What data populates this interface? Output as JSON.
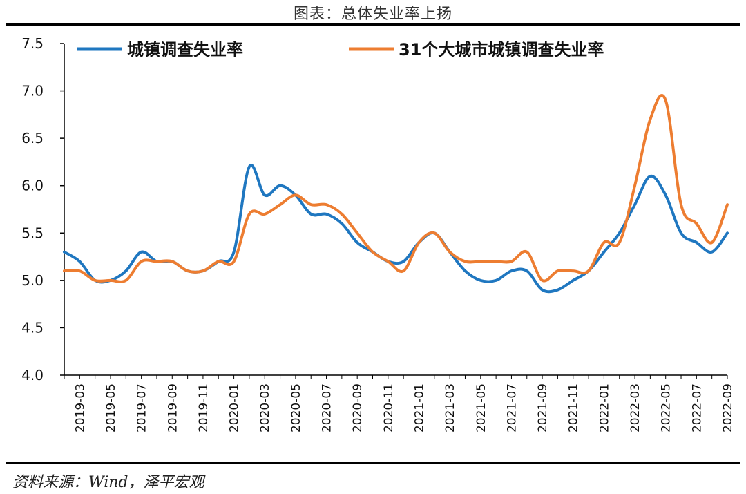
{
  "title": "图表：总体失业率上扬",
  "source": "资料来源：Wind，泽平宏观",
  "chart_data": {
    "type": "line",
    "ylim": [
      4.0,
      7.5
    ],
    "yticks": [
      "4.0",
      "4.5",
      "5.0",
      "5.5",
      "6.0",
      "6.5",
      "7.0",
      "7.5"
    ],
    "grid": false,
    "legend_position": "top",
    "x": [
      "2019-02",
      "2019-03",
      "2019-04",
      "2019-05",
      "2019-06",
      "2019-07",
      "2019-08",
      "2019-09",
      "2019-10",
      "2019-11",
      "2019-12",
      "2020-01",
      "2020-02",
      "2020-03",
      "2020-04",
      "2020-05",
      "2020-06",
      "2020-07",
      "2020-08",
      "2020-09",
      "2020-10",
      "2020-11",
      "2020-12",
      "2021-01",
      "2021-02",
      "2021-03",
      "2021-04",
      "2021-05",
      "2021-06",
      "2021-07",
      "2021-08",
      "2021-09",
      "2021-10",
      "2021-11",
      "2021-12",
      "2022-01",
      "2022-02",
      "2022-03",
      "2022-04",
      "2022-05",
      "2022-06",
      "2022-07",
      "2022-08",
      "2022-09"
    ],
    "xtick_labels": [
      "2019-03",
      "2019-05",
      "2019-07",
      "2019-09",
      "2019-11",
      "2020-01",
      "2020-03",
      "2020-05",
      "2020-07",
      "2020-09",
      "2020-11",
      "2021-01",
      "2021-03",
      "2021-05",
      "2021-07",
      "2021-09",
      "2021-11",
      "2022-01",
      "2022-03",
      "2022-05",
      "2022-07",
      "2022-09"
    ],
    "series": [
      {
        "name": "城镇调查失业率",
        "color": "#1f77c0",
        "values": [
          5.3,
          5.2,
          5.0,
          5.0,
          5.1,
          5.3,
          5.2,
          5.2,
          5.1,
          5.1,
          5.2,
          5.3,
          6.2,
          5.9,
          6.0,
          5.9,
          5.7,
          5.7,
          5.6,
          5.4,
          5.3,
          5.2,
          5.2,
          5.4,
          5.5,
          5.3,
          5.1,
          5.0,
          5.0,
          5.1,
          5.1,
          4.9,
          4.9,
          5.0,
          5.1,
          5.3,
          5.5,
          5.8,
          6.1,
          5.9,
          5.5,
          5.4,
          5.3,
          5.5
        ]
      },
      {
        "name": "31个大城市城镇调查失业率",
        "color": "#ed7d31",
        "values": [
          5.1,
          5.1,
          5.0,
          5.0,
          5.0,
          5.2,
          5.2,
          5.2,
          5.1,
          5.1,
          5.2,
          5.2,
          5.7,
          5.7,
          5.8,
          5.9,
          5.8,
          5.8,
          5.7,
          5.5,
          5.3,
          5.2,
          5.1,
          5.4,
          5.5,
          5.3,
          5.2,
          5.2,
          5.2,
          5.2,
          5.3,
          5.0,
          5.1,
          5.1,
          5.1,
          5.4,
          5.4,
          6.0,
          6.7,
          6.9,
          5.8,
          5.6,
          5.4,
          5.8
        ]
      }
    ]
  }
}
